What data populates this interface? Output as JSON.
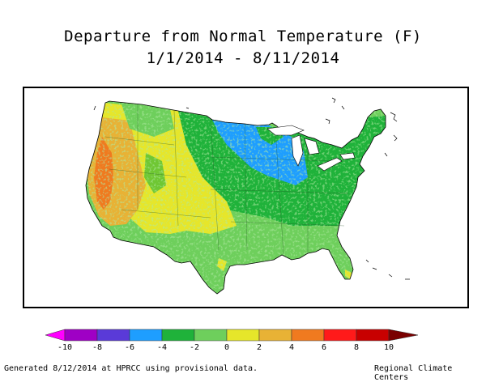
{
  "title_line1": "Departure from Normal Temperature (F)",
  "title_line2": "1/1/2014 - 8/11/2014",
  "legend": {
    "ticks": [
      "-10",
      "-8",
      "-6",
      "-4",
      "-2",
      "0",
      "2",
      "4",
      "6",
      "8",
      "10"
    ],
    "bins": [
      {
        "color": "#ff00ff"
      },
      {
        "color": "#9f00c5"
      },
      {
        "color": "#5a3ad8"
      },
      {
        "color": "#1e9eff"
      },
      {
        "color": "#1fb23a"
      },
      {
        "color": "#6ecf5c"
      },
      {
        "color": "#e6e62a"
      },
      {
        "color": "#e8b235"
      },
      {
        "color": "#f07a1f"
      },
      {
        "color": "#ff1a1a"
      },
      {
        "color": "#c80000"
      },
      {
        "color": "#7a0000"
      }
    ]
  },
  "footer": {
    "left": "Generated 8/12/2014 at HPRCC using provisional data.",
    "right": "Regional Climate Centers"
  }
}
